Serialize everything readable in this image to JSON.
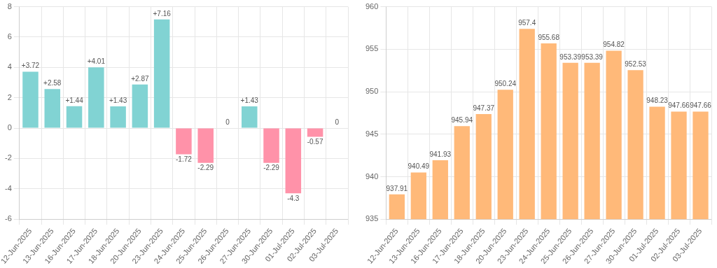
{
  "chart_data": [
    {
      "type": "bar",
      "categories": [
        "12-Jun-2025",
        "13-Jun-2025",
        "16-Jun-2025",
        "17-Jun-2025",
        "18-Jun-2025",
        "20-Jun-2025",
        "23-Jun-2025",
        "24-Jun-2025",
        "25-Jun-2025",
        "26-Jun-2025",
        "27-Jun-2025",
        "30-Jun-2025",
        "01-Jul-2025",
        "02-Jul-2025",
        "03-Jul-2025"
      ],
      "values": [
        3.72,
        2.58,
        1.44,
        4.01,
        1.43,
        2.87,
        7.16,
        -1.72,
        -2.29,
        0,
        1.43,
        -2.29,
        -4.3,
        -0.57,
        0
      ],
      "value_labels": [
        "+3.72",
        "+2.58",
        "+1.44",
        "+4.01",
        "+1.43",
        "+2.87",
        "+7.16",
        "-1.72",
        "-2.29",
        "0",
        "+1.43",
        "-2.29",
        "-4.3",
        "-0.57",
        "0"
      ],
      "colors": [
        "#81d3d3",
        "#81d3d3",
        "#81d3d3",
        "#81d3d3",
        "#81d3d3",
        "#81d3d3",
        "#81d3d3",
        "#ff92a9",
        "#ff92a9",
        "#81d3d3",
        "#81d3d3",
        "#ff92a9",
        "#ff92a9",
        "#ff92a9",
        "#81d3d3"
      ],
      "ylim": [
        -6,
        8
      ],
      "yticks": [
        -6,
        -4,
        -2,
        0,
        2,
        4,
        6,
        8
      ],
      "grid": true,
      "legend": false
    },
    {
      "type": "bar",
      "categories": [
        "12-Jun-2025",
        "13-Jun-2025",
        "16-Jun-2025",
        "17-Jun-2025",
        "18-Jun-2025",
        "20-Jun-2025",
        "23-Jun-2025",
        "24-Jun-2025",
        "25-Jun-2025",
        "26-Jun-2025",
        "27-Jun-2025",
        "30-Jun-2025",
        "01-Jul-2025",
        "02-Jul-2025",
        "03-Jul-2025"
      ],
      "values": [
        937.91,
        940.49,
        941.93,
        945.94,
        947.37,
        950.24,
        957.4,
        955.68,
        953.39,
        953.39,
        954.82,
        952.53,
        948.23,
        947.66,
        947.66
      ],
      "color": "#ffb979",
      "data_labels": true,
      "ylim": [
        935,
        960
      ],
      "yticks": [
        935,
        940,
        945,
        950,
        955,
        960
      ],
      "grid": true,
      "legend": false
    }
  ]
}
